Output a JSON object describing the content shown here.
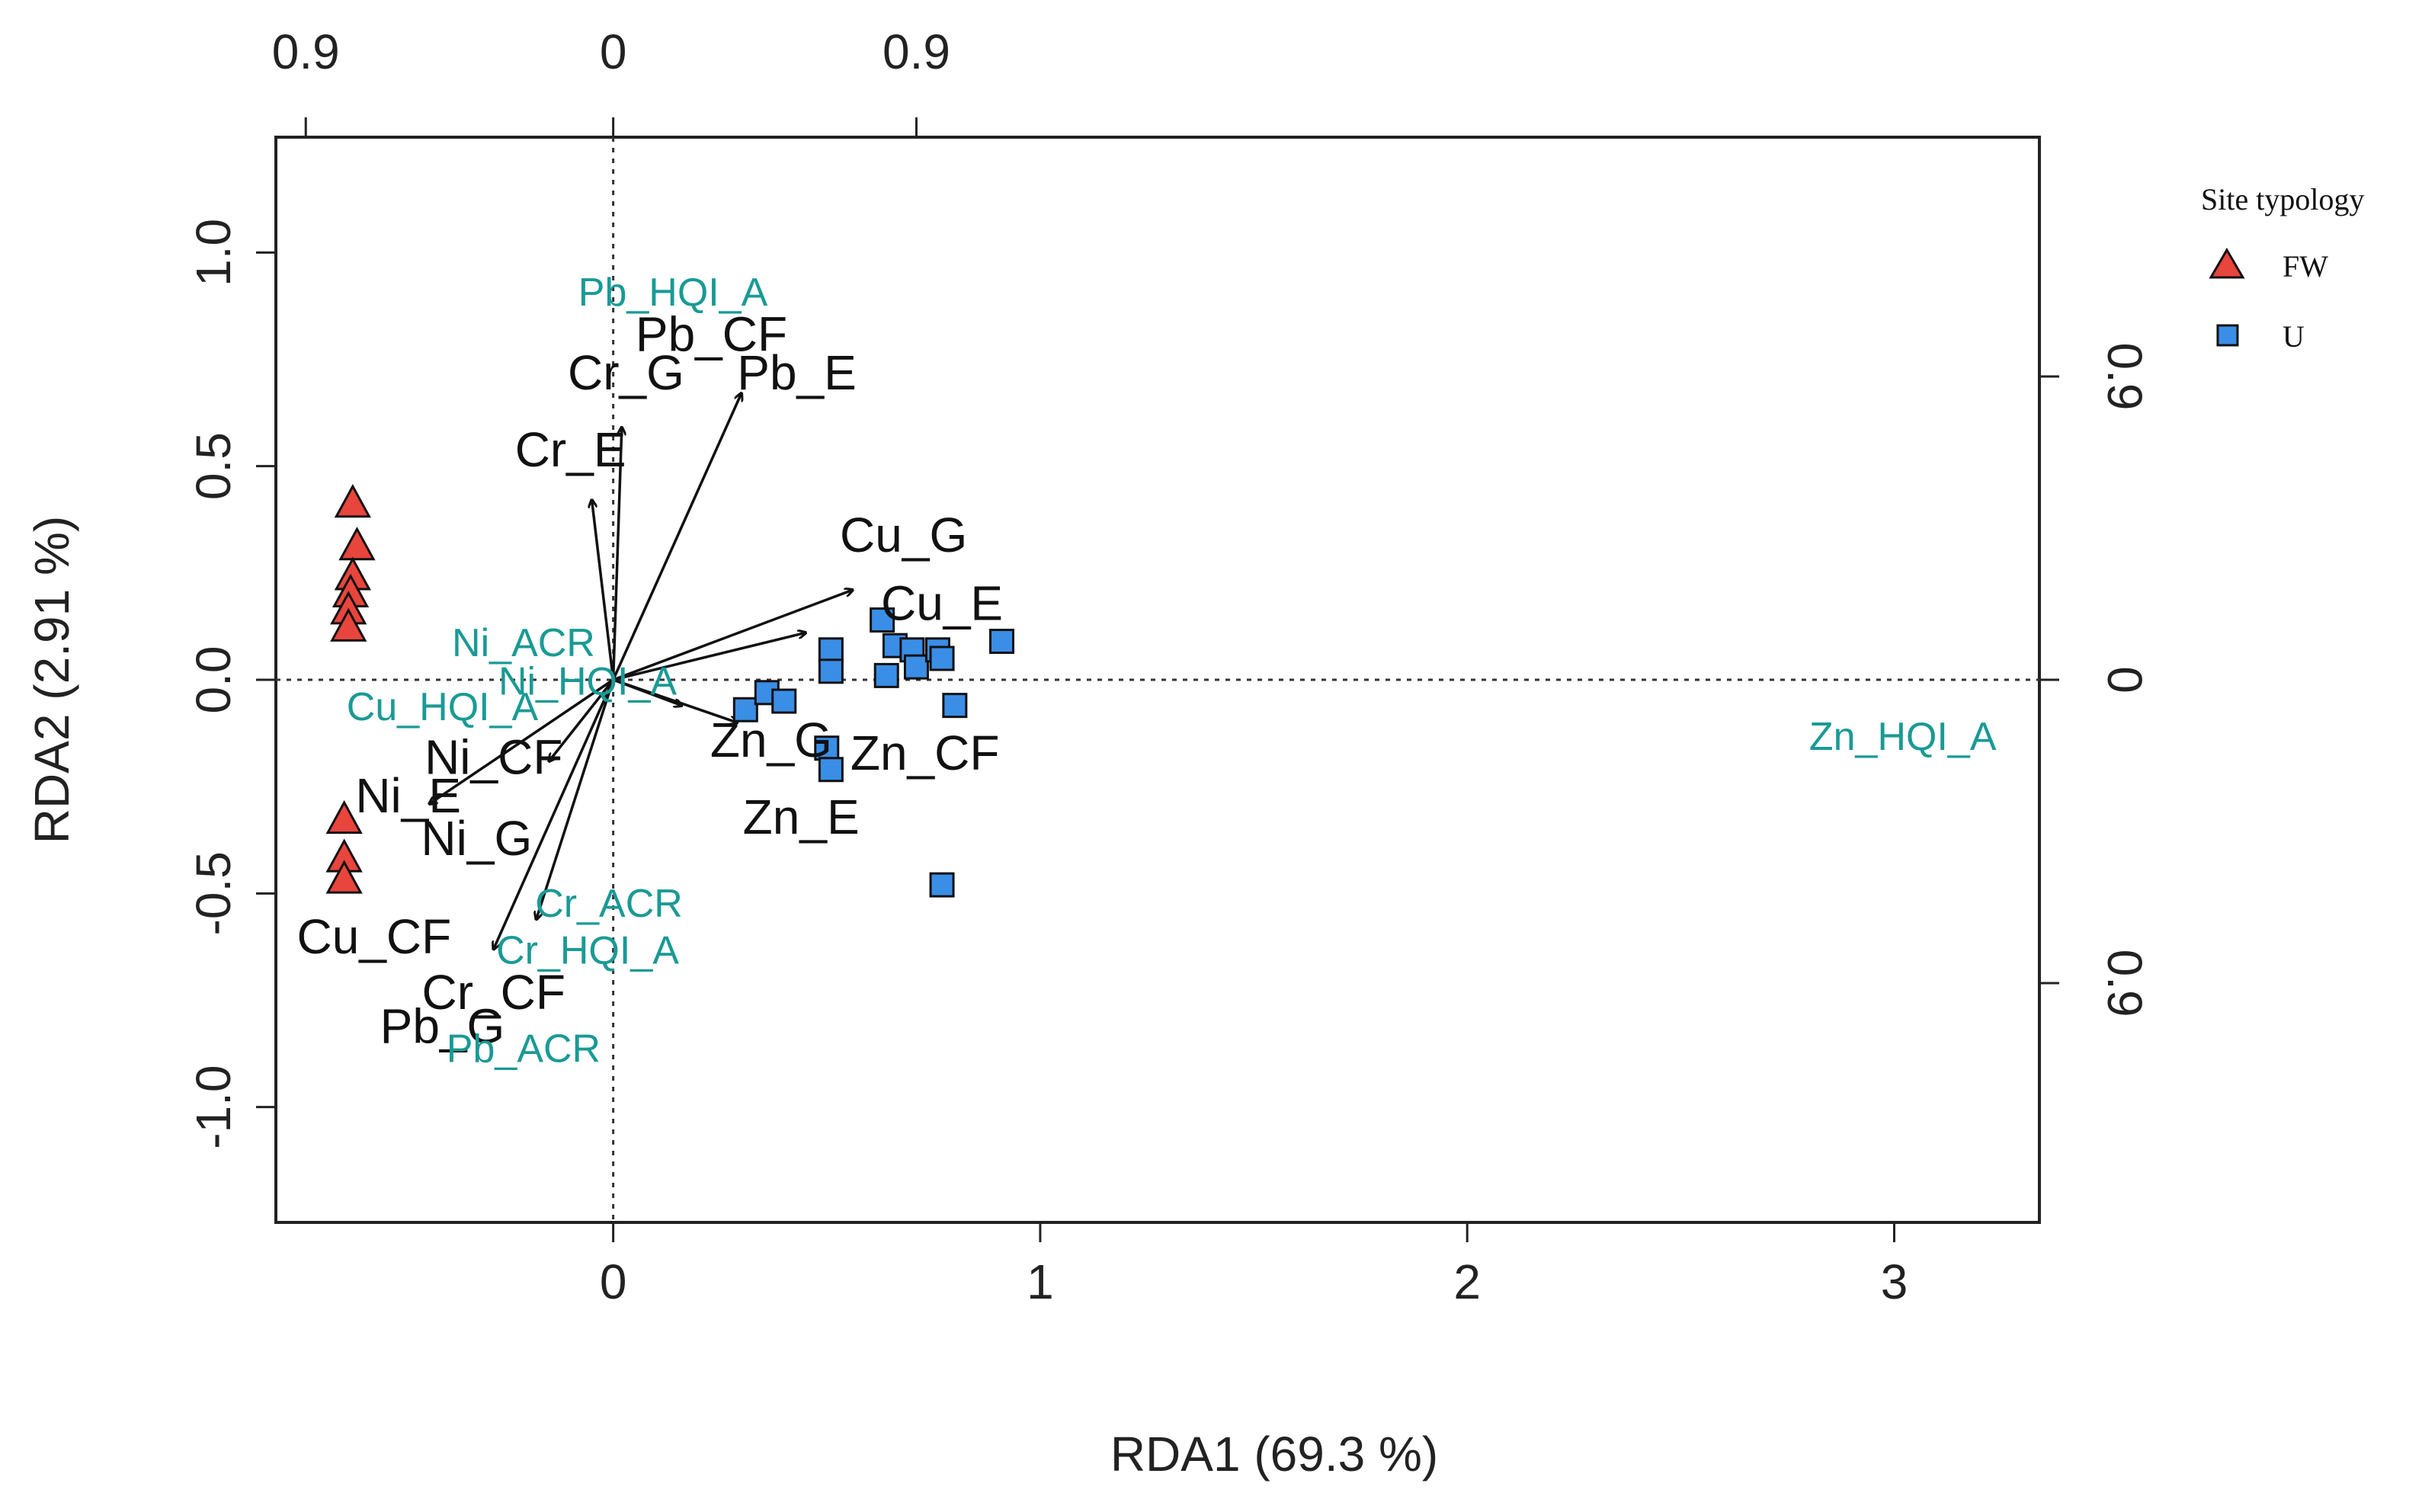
{
  "chart_data": {
    "type": "scatter",
    "xlabel": "RDA1 (69.3 %)",
    "ylabel": "RDA2 (2.91 %)",
    "xlim": [
      -0.79,
      3.34
    ],
    "ylim": [
      -1.27,
      1.27
    ],
    "xticks": [
      0,
      1,
      2,
      3
    ],
    "yticks": [
      -1.0,
      -0.5,
      0.0,
      0.5,
      1.0
    ],
    "ytick_labels": [
      "-1.0",
      "-0.5",
      "0.0",
      "0.5",
      "1.0"
    ],
    "top_axis": {
      "labels": [
        "0.9",
        "0",
        "0.9"
      ],
      "values": [
        -0.72,
        0.0,
        0.71
      ]
    },
    "right_axis": {
      "labels": [
        "0.9",
        "0",
        "0.9"
      ],
      "values": [
        0.71,
        0.0,
        -0.71
      ]
    },
    "reference_lines": {
      "x": 0,
      "y": 0
    },
    "colors": {
      "FW": "#e8453c",
      "U": "#3a8ee6",
      "arrow": "#111111",
      "teal": "#1a9a96"
    },
    "legend": {
      "title": "Site typology",
      "entries": [
        {
          "name": "FW",
          "marker": "triangle",
          "color": "#e8453c"
        },
        {
          "name": "U",
          "marker": "square",
          "color": "#3a8ee6"
        }
      ]
    },
    "sites": {
      "FW": [
        {
          "x": -0.61,
          "y": 0.41
        },
        {
          "x": -0.6,
          "y": 0.31
        },
        {
          "x": -0.61,
          "y": 0.24
        },
        {
          "x": -0.615,
          "y": 0.2
        },
        {
          "x": -0.62,
          "y": 0.16
        },
        {
          "x": -0.62,
          "y": 0.12
        },
        {
          "x": -0.63,
          "y": -0.33
        },
        {
          "x": -0.63,
          "y": -0.42
        },
        {
          "x": -0.63,
          "y": -0.47
        }
      ],
      "U": [
        {
          "x": 0.31,
          "y": -0.07
        },
        {
          "x": 0.36,
          "y": -0.03
        },
        {
          "x": 0.4,
          "y": -0.05
        },
        {
          "x": 0.51,
          "y": 0.07
        },
        {
          "x": 0.51,
          "y": 0.02
        },
        {
          "x": 0.5,
          "y": -0.16
        },
        {
          "x": 0.51,
          "y": -0.21
        },
        {
          "x": 0.63,
          "y": 0.14
        },
        {
          "x": 0.66,
          "y": 0.08
        },
        {
          "x": 0.64,
          "y": 0.01
        },
        {
          "x": 0.7,
          "y": 0.07
        },
        {
          "x": 0.71,
          "y": 0.03
        },
        {
          "x": 0.76,
          "y": 0.07
        },
        {
          "x": 0.77,
          "y": 0.05
        },
        {
          "x": 0.8,
          "y": -0.06
        },
        {
          "x": 0.91,
          "y": 0.09
        },
        {
          "x": 0.77,
          "y": -0.48
        }
      ]
    },
    "arrows": [
      {
        "x": 0.3,
        "y": 0.67
      },
      {
        "x": 0.02,
        "y": 0.59
      },
      {
        "x": -0.05,
        "y": 0.42
      },
      {
        "x": 0.56,
        "y": 0.21
      },
      {
        "x": 0.45,
        "y": 0.11
      },
      {
        "x": 0.29,
        "y": -0.1
      },
      {
        "x": 0.16,
        "y": -0.06
      },
      {
        "x": -0.43,
        "y": -0.29
      },
      {
        "x": -0.15,
        "y": -0.19
      },
      {
        "x": -0.18,
        "y": -0.56
      },
      {
        "x": -0.28,
        "y": -0.63
      }
    ],
    "variable_labels": [
      {
        "text": "Pb_CF",
        "x": 0.23,
        "y": 0.8,
        "color": "black"
      },
      {
        "text": "Pb_E",
        "x": 0.43,
        "y": 0.71,
        "color": "black"
      },
      {
        "text": "Cr_G",
        "x": 0.03,
        "y": 0.71,
        "color": "black"
      },
      {
        "text": "Cr_E",
        "x": -0.1,
        "y": 0.53,
        "color": "black"
      },
      {
        "text": "Cu_G",
        "x": 0.68,
        "y": 0.33,
        "color": "black"
      },
      {
        "text": "Cu_E",
        "x": 0.77,
        "y": 0.17,
        "color": "black"
      },
      {
        "text": "Zn_G",
        "x": 0.37,
        "y": -0.15,
        "color": "black"
      },
      {
        "text": "Zn_CF",
        "x": 0.73,
        "y": -0.18,
        "color": "black"
      },
      {
        "text": "Zn_E",
        "x": 0.44,
        "y": -0.33,
        "color": "black"
      },
      {
        "text": "Ni_CF",
        "x": -0.28,
        "y": -0.19,
        "color": "black"
      },
      {
        "text": "Ni_E",
        "x": -0.48,
        "y": -0.28,
        "color": "black"
      },
      {
        "text": "Ni_G",
        "x": -0.32,
        "y": -0.38,
        "color": "black"
      },
      {
        "text": "Cu_CF",
        "x": -0.56,
        "y": -0.61,
        "color": "black"
      },
      {
        "text": "Cr_CF",
        "x": -0.28,
        "y": -0.74,
        "color": "black"
      },
      {
        "text": "Pb_G",
        "x": -0.4,
        "y": -0.82,
        "color": "black"
      },
      {
        "text": "Pb_HQI_A",
        "x": 0.14,
        "y": 0.9,
        "color": "teal"
      },
      {
        "text": "Ni_ACR",
        "x": -0.21,
        "y": 0.08,
        "color": "teal"
      },
      {
        "text": "Ni_HQI_A",
        "x": -0.06,
        "y": -0.01,
        "color": "teal"
      },
      {
        "text": "Cu_HQI_A",
        "x": -0.4,
        "y": -0.07,
        "color": "teal"
      },
      {
        "text": "Cr_ACR",
        "x": -0.01,
        "y": -0.53,
        "color": "teal"
      },
      {
        "text": "Cr_HQI_A",
        "x": -0.06,
        "y": -0.64,
        "color": "teal"
      },
      {
        "text": "Pb_ACR",
        "x": -0.21,
        "y": -0.87,
        "color": "teal"
      },
      {
        "text": "Zn_HQI_A",
        "x": 3.02,
        "y": -0.14,
        "color": "teal"
      }
    ]
  }
}
